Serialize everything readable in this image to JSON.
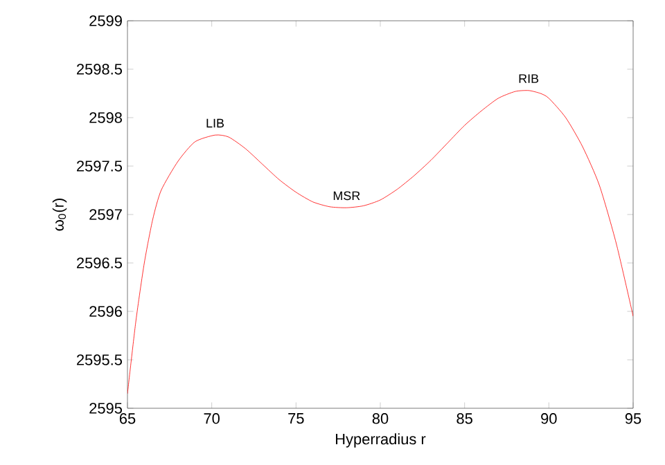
{
  "chart_data": {
    "type": "line",
    "xlabel": "Hyperradius r",
    "ylabel": "ω$_{0}$(r)",
    "x": [
      65,
      65.5,
      66,
      66.5,
      67,
      68,
      69,
      70.2,
      71,
      72,
      73,
      74,
      75,
      76,
      77,
      78,
      79,
      80,
      81,
      82,
      83,
      84,
      85,
      86,
      87,
      88,
      88.8,
      89.5,
      90,
      91,
      92,
      93,
      94,
      95
    ],
    "series": [
      {
        "color": "#ff0000",
        "values": [
          2595.15,
          2595.9,
          2596.5,
          2596.95,
          2597.25,
          2597.55,
          2597.75,
          2597.82,
          2597.8,
          2597.68,
          2597.52,
          2597.36,
          2597.23,
          2597.13,
          2597.08,
          2597.07,
          2597.09,
          2597.15,
          2597.26,
          2597.4,
          2597.56,
          2597.74,
          2597.92,
          2598.07,
          2598.2,
          2598.27,
          2598.28,
          2598.25,
          2598.2,
          2598.0,
          2597.7,
          2597.3,
          2596.7,
          2595.95
        ]
      }
    ],
    "annotations": [
      {
        "text": "LIB",
        "x": 70.2,
        "y": 2597.82
      },
      {
        "text": "MSR",
        "x": 78,
        "y": 2597.07
      },
      {
        "text": "RIB",
        "x": 88.8,
        "y": 2598.28
      }
    ],
    "xlim": [
      65,
      95
    ],
    "ylim": [
      2595,
      2599
    ],
    "xticks": [
      65,
      70,
      75,
      80,
      85,
      90,
      95
    ],
    "yticks": [
      2595,
      2595.5,
      2596,
      2596.5,
      2597,
      2597.5,
      2598,
      2598.5,
      2599
    ],
    "grid": false,
    "marker": "none",
    "line_style": "solid"
  }
}
